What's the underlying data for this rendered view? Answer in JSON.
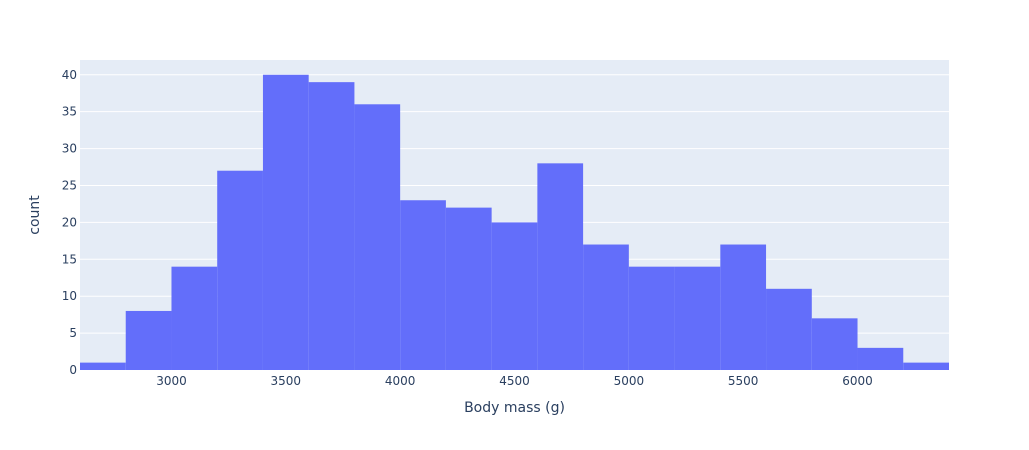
{
  "chart_data": {
    "type": "bar",
    "subtype": "histogram",
    "xlabel": "Body mass (g)",
    "ylabel": "count",
    "xlim": [
      2600,
      6400
    ],
    "ylim": [
      0,
      42
    ],
    "xticks": [
      3000,
      3500,
      4000,
      4500,
      5000,
      5500,
      6000
    ],
    "yticks": [
      0,
      5,
      10,
      15,
      20,
      25,
      30,
      35,
      40
    ],
    "bin_width": 200,
    "bins": [
      {
        "start": 2600,
        "end": 2800,
        "count": 1
      },
      {
        "start": 2800,
        "end": 3000,
        "count": 8
      },
      {
        "start": 3000,
        "end": 3200,
        "count": 14
      },
      {
        "start": 3200,
        "end": 3400,
        "count": 27
      },
      {
        "start": 3400,
        "end": 3600,
        "count": 40
      },
      {
        "start": 3600,
        "end": 3800,
        "count": 39
      },
      {
        "start": 3800,
        "end": 4000,
        "count": 36
      },
      {
        "start": 4000,
        "end": 4200,
        "count": 23
      },
      {
        "start": 4200,
        "end": 4400,
        "count": 22
      },
      {
        "start": 4400,
        "end": 4600,
        "count": 20
      },
      {
        "start": 4600,
        "end": 4800,
        "count": 28
      },
      {
        "start": 4800,
        "end": 5000,
        "count": 17
      },
      {
        "start": 5000,
        "end": 5200,
        "count": 14
      },
      {
        "start": 5200,
        "end": 5400,
        "count": 14
      },
      {
        "start": 5400,
        "end": 5600,
        "count": 17
      },
      {
        "start": 5600,
        "end": 5800,
        "count": 11
      },
      {
        "start": 5800,
        "end": 6000,
        "count": 7
      },
      {
        "start": 6000,
        "end": 6200,
        "count": 3
      },
      {
        "start": 6200,
        "end": 6400,
        "count": 1
      }
    ],
    "grid": true,
    "legend": "none",
    "colors": {
      "bar": "#636efa",
      "plot_background": "#e5ecf6",
      "grid": "#ffffff",
      "text": "#2a3f5f"
    }
  }
}
